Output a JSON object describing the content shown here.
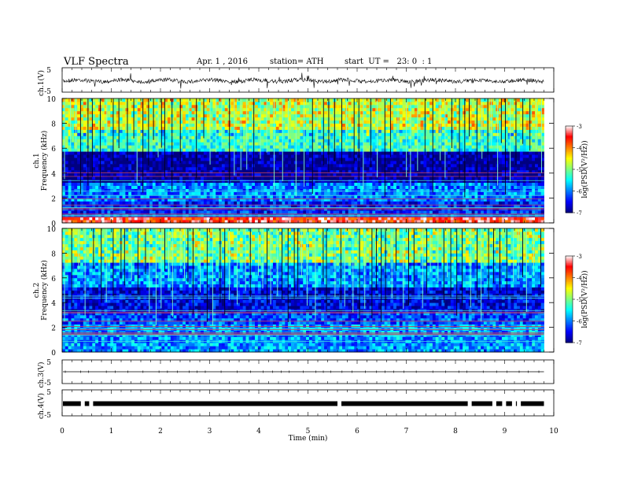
{
  "header": {
    "title": "VLF Spectra",
    "date": "Apr. 1 , 2016",
    "station": "station= ATH",
    "start": "start  UT =   23: 0  : 1"
  },
  "chart_data": [
    {
      "type": "line",
      "panel": "ch1-waveform",
      "ylabel": "ch.1(V)",
      "yticks": [
        "5",
        "-5"
      ],
      "ylim": [
        -5,
        5
      ],
      "xlim": [
        0,
        10
      ]
    },
    {
      "type": "heatmap",
      "panel": "ch1-spectrogram",
      "ylabel_channel": "ch.1",
      "ylabel": "Frequency  (kHz)",
      "yticks": [
        "0",
        "2",
        "4",
        "6",
        "8",
        "10"
      ],
      "ylim": [
        0,
        10
      ],
      "xlim": [
        0,
        9.8
      ],
      "colorbar": {
        "label": "log(PSD(V²/Hz))",
        "ticks": [
          "-3",
          "-4",
          "-5",
          "-6",
          "-7"
        ],
        "range": [
          -7,
          -3
        ]
      },
      "bands_khz": [
        {
          "from": 0,
          "to": 0.5,
          "level": -3.5
        },
        {
          "from": 0.5,
          "to": 1.8,
          "level": -6.4
        },
        {
          "from": 1.8,
          "to": 3.2,
          "level": -6.0
        },
        {
          "from": 3.2,
          "to": 5.7,
          "level": -6.9
        },
        {
          "from": 5.7,
          "to": 7.5,
          "level": -5.3
        },
        {
          "from": 7.5,
          "to": 10,
          "level": -4.7
        }
      ]
    },
    {
      "type": "heatmap",
      "panel": "ch2-spectrogram",
      "ylabel_channel": "ch.2",
      "ylabel": "Frequency  (kHz)",
      "yticks": [
        "0",
        "2",
        "4",
        "6",
        "8",
        "10"
      ],
      "ylim": [
        0,
        10
      ],
      "xlim": [
        0,
        9.8
      ],
      "colorbar": {
        "label": "log(PSD(V²/Hz))",
        "ticks": [
          "-3",
          "-4",
          "-5",
          "-6",
          "-7"
        ],
        "range": [
          -7,
          -3
        ]
      },
      "bands_khz": [
        {
          "from": 0,
          "to": 2.2,
          "level": -5.9
        },
        {
          "from": 2.2,
          "to": 3.2,
          "level": -6.2
        },
        {
          "from": 3.2,
          "to": 5.2,
          "level": -6.6
        },
        {
          "from": 5.2,
          "to": 7.3,
          "level": -5.9
        },
        {
          "from": 7.3,
          "to": 10,
          "level": -5.0
        }
      ]
    },
    {
      "type": "line",
      "panel": "ch3-waveform",
      "ylabel": "ch.3(V)",
      "yticks": [
        "5",
        "-5"
      ],
      "ylim": [
        -5,
        5
      ],
      "xlim": [
        0,
        10
      ]
    },
    {
      "type": "line",
      "panel": "ch4-waveform",
      "ylabel": "ch.4(V)",
      "yticks": [
        "5",
        "-5"
      ],
      "ylim": [
        -5,
        5
      ],
      "xlim": [
        0,
        10
      ],
      "xlabel": "Time  (min)",
      "xticks": [
        "0",
        "1",
        "2",
        "3",
        "4",
        "5",
        "6",
        "7",
        "8",
        "9",
        "10"
      ]
    }
  ],
  "colors": {
    "scale": [
      "#000080",
      "#0000ff",
      "#0080ff",
      "#00ffff",
      "#80ff80",
      "#ffff00",
      "#ff8000",
      "#ff0000",
      "#ffffff"
    ]
  }
}
